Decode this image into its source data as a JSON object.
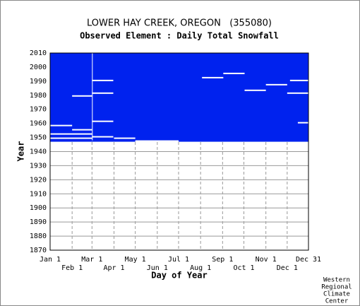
{
  "chart_data": {
    "type": "coverage",
    "title": "LOWER HAY CREEK, OREGON   (355080)",
    "subtitle": "Observed Element : Daily Total Snowfall",
    "x_label": "Day of Year",
    "y_label": "Year",
    "credit": [
      "Western",
      "Regional",
      "Climate",
      "Center"
    ],
    "color": "#0022ee",
    "grid": true,
    "xlim": [
      1,
      365
    ],
    "ylim": [
      1870,
      2010
    ],
    "xticks": [
      {
        "value": 1,
        "label": "Jan 1"
      },
      {
        "value": 32,
        "label": "Feb 1"
      },
      {
        "value": 60,
        "label": "Mar 1"
      },
      {
        "value": 91,
        "label": "Apr 1"
      },
      {
        "value": 121,
        "label": "May 1"
      },
      {
        "value": 152,
        "label": "Jun 1"
      },
      {
        "value": 182,
        "label": "Jul 1"
      },
      {
        "value": 213,
        "label": "Aug 1"
      },
      {
        "value": 244,
        "label": "Sep 1"
      },
      {
        "value": 274,
        "label": "Oct 1"
      },
      {
        "value": 305,
        "label": "Nov 1"
      },
      {
        "value": 335,
        "label": "Dec 1"
      },
      {
        "value": 365,
        "label": "Dec 31"
      }
    ],
    "yticks": [
      1870,
      1880,
      1890,
      1900,
      1910,
      1920,
      1930,
      1940,
      1950,
      1960,
      1970,
      1980,
      1990,
      2000,
      2010
    ],
    "coverage": {
      "years": [
        1947,
        2009
      ],
      "days": [
        1,
        365
      ]
    },
    "missing": [
      {
        "years": [
          1947,
          1947
        ],
        "days": [
          121,
          182
        ]
      },
      {
        "years": [
          1948,
          2009
        ],
        "days": [
          60,
          60.4
        ]
      },
      {
        "years": [
          1992,
          1992
        ],
        "days": [
          215,
          245
        ]
      },
      {
        "years": [
          1995,
          1995
        ],
        "days": [
          245,
          275
        ]
      },
      {
        "years": [
          1983,
          1983
        ],
        "days": [
          275,
          305
        ]
      },
      {
        "years": [
          1987,
          1987
        ],
        "days": [
          305,
          335
        ]
      },
      {
        "years": [
          1981,
          1981
        ],
        "days": [
          335,
          365
        ]
      },
      {
        "years": [
          1990,
          1990
        ],
        "days": [
          339,
          365
        ]
      },
      {
        "years": [
          1990,
          1990
        ],
        "days": [
          60,
          90
        ]
      },
      {
        "years": [
          1981,
          1981
        ],
        "days": [
          60,
          90
        ]
      },
      {
        "years": [
          1979,
          1979
        ],
        "days": [
          32,
          60
        ]
      },
      {
        "years": [
          1961,
          1961
        ],
        "days": [
          60,
          90
        ]
      },
      {
        "years": [
          1960,
          1960
        ],
        "days": [
          350,
          365
        ]
      },
      {
        "years": [
          1958,
          1958
        ],
        "days": [
          1,
          32
        ]
      },
      {
        "years": [
          1955,
          1955
        ],
        "days": [
          32,
          60
        ]
      },
      {
        "years": [
          1952,
          1952
        ],
        "days": [
          1,
          60
        ]
      },
      {
        "years": [
          1950,
          1950
        ],
        "days": [
          60,
          90
        ]
      },
      {
        "years": [
          1949,
          1949
        ],
        "days": [
          1,
          60
        ]
      },
      {
        "years": [
          1949,
          1949
        ],
        "days": [
          91,
          121
        ]
      }
    ]
  }
}
